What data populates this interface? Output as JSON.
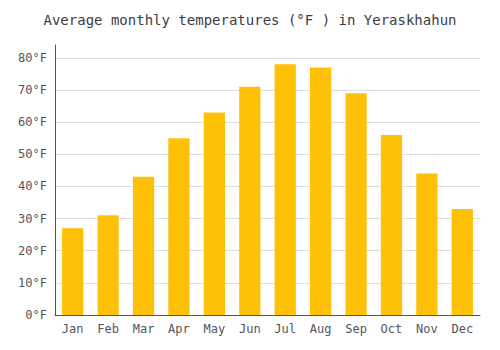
{
  "chart_data": {
    "type": "bar",
    "title": "Average monthly temperatures (°F ) in Yeraskhahun",
    "categories": [
      "Jan",
      "Feb",
      "Mar",
      "Apr",
      "May",
      "Jun",
      "Jul",
      "Aug",
      "Sep",
      "Oct",
      "Nov",
      "Dec"
    ],
    "values": [
      27,
      31,
      43,
      55,
      63,
      71,
      78,
      77,
      69,
      56,
      44,
      33
    ],
    "color": "#FFC107",
    "ylim": [
      0,
      84
    ],
    "yticks": [
      {
        "value": 0,
        "label": "0°F"
      },
      {
        "value": 10,
        "label": "10°F"
      },
      {
        "value": 20,
        "label": "20°F"
      },
      {
        "value": 30,
        "label": "30°F"
      },
      {
        "value": 40,
        "label": "40°F"
      },
      {
        "value": 50,
        "label": "50°F"
      },
      {
        "value": 60,
        "label": "60°F"
      },
      {
        "value": 70,
        "label": "70°F"
      },
      {
        "value": 80,
        "label": "80°F"
      }
    ],
    "grid": true
  }
}
